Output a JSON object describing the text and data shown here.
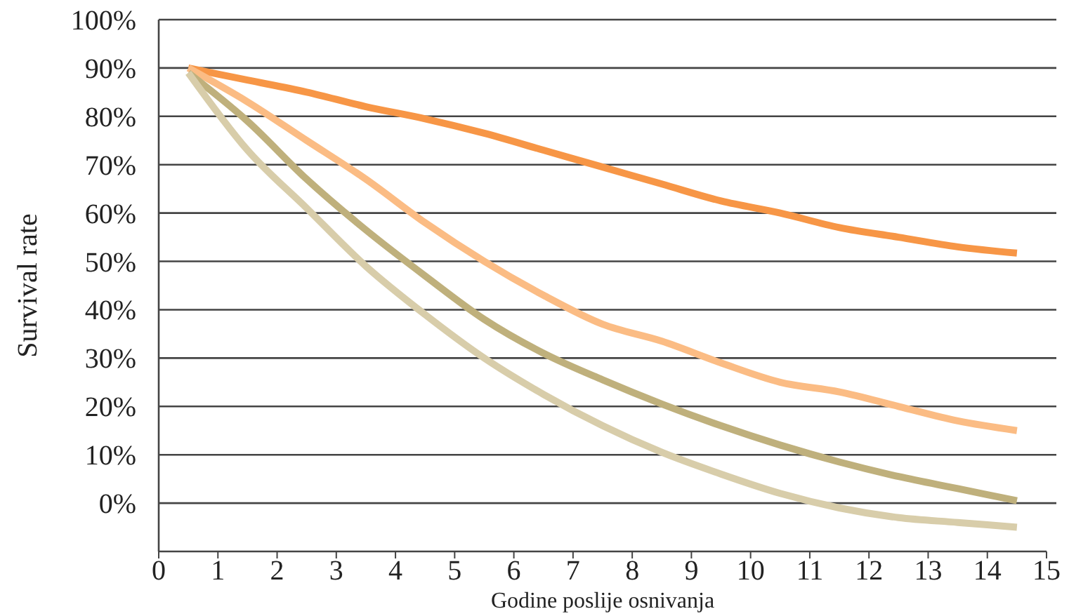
{
  "chart_data": {
    "type": "line",
    "xlabel": "Godine poslije osnivanja",
    "ylabel": "Survival rate",
    "xlim": [
      0,
      15
    ],
    "xticks": [
      0,
      1,
      2,
      3,
      4,
      5,
      6,
      7,
      8,
      9,
      10,
      11,
      12,
      13,
      14,
      15
    ],
    "ylim": [
      -10,
      100
    ],
    "yticks": [
      {
        "value": 0,
        "label": "0%"
      },
      {
        "value": 10,
        "label": "10%"
      },
      {
        "value": 20,
        "label": "20%"
      },
      {
        "value": 30,
        "label": "30%"
      },
      {
        "value": 40,
        "label": "40%"
      },
      {
        "value": 50,
        "label": "50%"
      },
      {
        "value": 60,
        "label": "60%"
      },
      {
        "value": 70,
        "label": "70%"
      },
      {
        "value": 80,
        "label": "80%"
      },
      {
        "value": 90,
        "label": "90%"
      },
      {
        "value": 100,
        "label": "100%"
      }
    ],
    "grid": "y",
    "marker": "none",
    "line_style": "solid",
    "x": [
      0.5,
      1.5,
      2.5,
      3.5,
      4.5,
      5.5,
      6.5,
      7.5,
      8.5,
      9.5,
      10.5,
      11.5,
      12.5,
      13.5,
      14.5
    ],
    "series": [
      {
        "color": "#f79646",
        "values": [
          90,
          87.5,
          85,
          82,
          79.5,
          76.5,
          73,
          69.5,
          66,
          62.5,
          60,
          57,
          55,
          53,
          51.7
        ]
      },
      {
        "color": "#fbbc84",
        "values": [
          90,
          83,
          75,
          67,
          58,
          50,
          43,
          37,
          33.5,
          29,
          25,
          23,
          20,
          17,
          15
        ]
      },
      {
        "color": "#bfb07c",
        "values": [
          89,
          79,
          67,
          56.5,
          47,
          38,
          31,
          25.5,
          20.5,
          16,
          12,
          8.5,
          5.5,
          3,
          0.5
        ]
      },
      {
        "color": "#d8cdaa",
        "values": [
          89,
          73,
          61,
          49,
          39,
          30,
          22.5,
          16,
          10.5,
          6,
          2,
          -1,
          -3,
          -4,
          -5
        ]
      }
    ]
  }
}
